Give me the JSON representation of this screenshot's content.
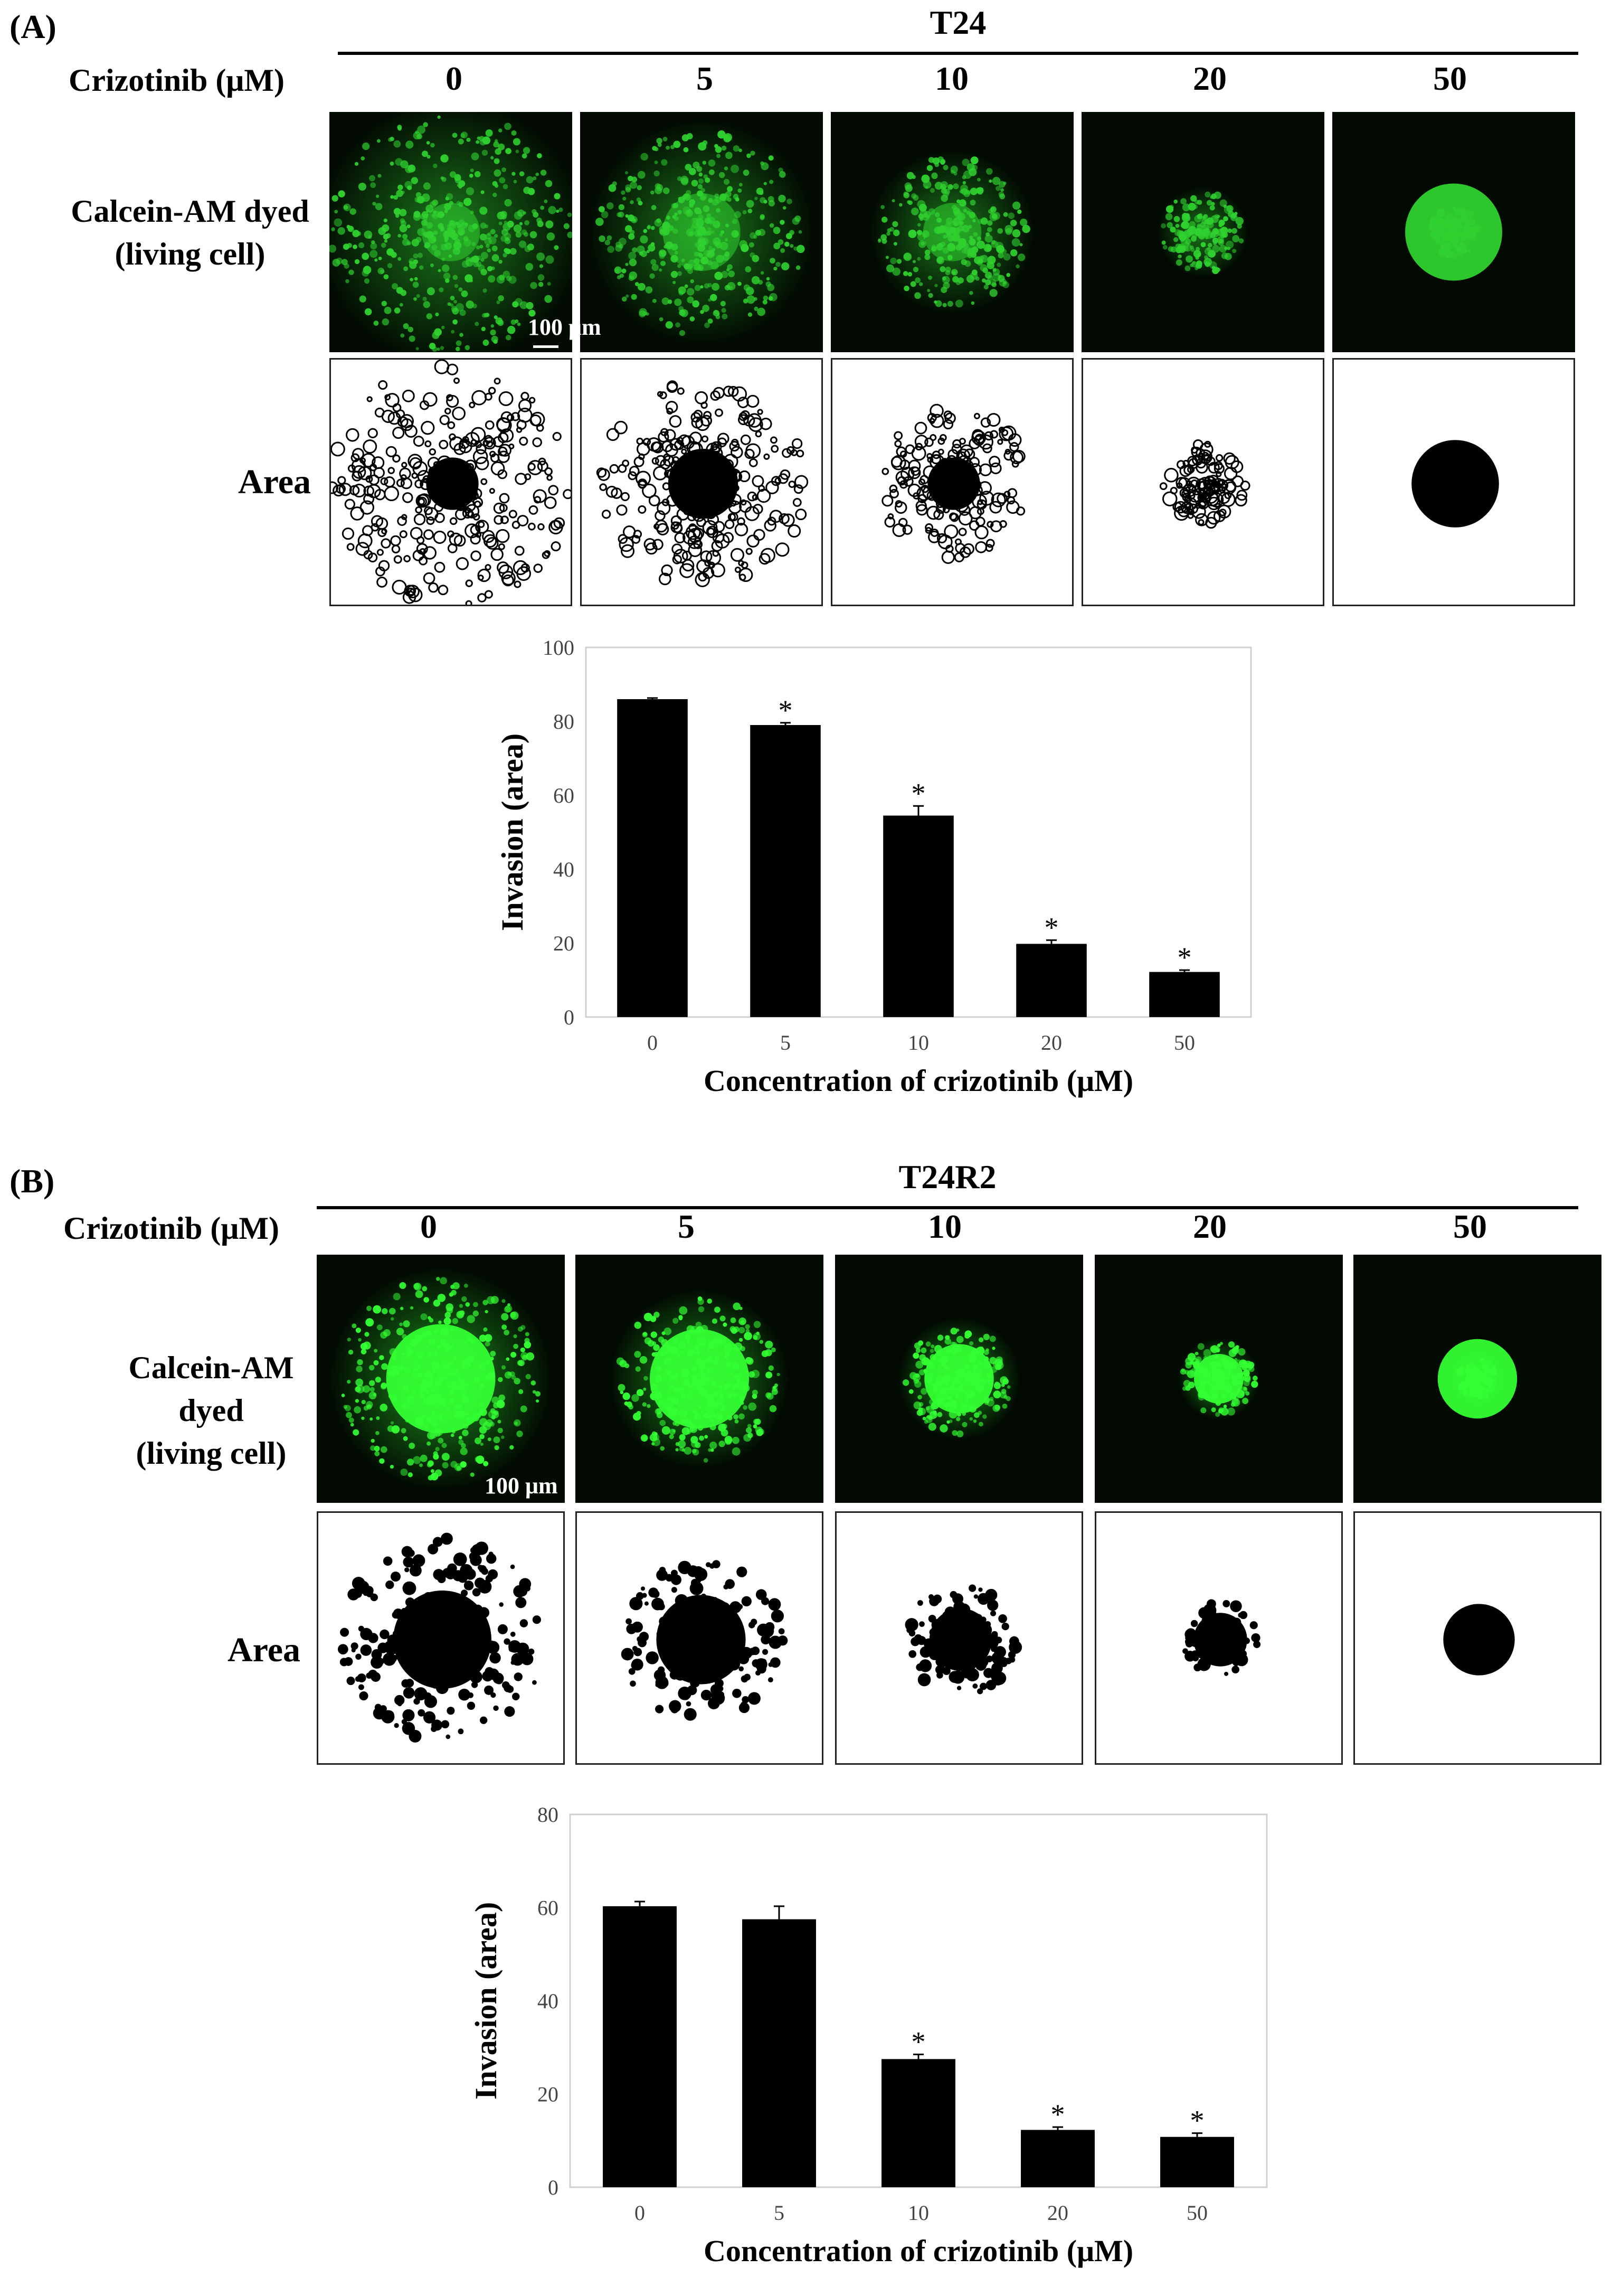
{
  "panel_a": {
    "label": "(A)",
    "cell_line": "T24",
    "treatment_label": "Crizotinib (μM)",
    "concentrations": [
      "0",
      "5",
      "10",
      "20",
      "50"
    ],
    "row1_label_lines": [
      "Calcein-AM dyed",
      "(living cell)"
    ],
    "row2_label": "Area",
    "scale_bar": "100 μm",
    "fluor_color": "#2fd12f"
  },
  "panel_b": {
    "label": "(B)",
    "cell_line": "T24R2",
    "treatment_label": "Crizotinib (μM)",
    "concentrations": [
      "0",
      "5",
      "10",
      "20",
      "50"
    ],
    "row1_label_lines": [
      "Calcein-AM",
      "dyed",
      "(living cell)"
    ],
    "row2_label": "Area",
    "scale_bar": "100 μm",
    "fluor_color": "#33ff33"
  },
  "chart_data": [
    {
      "type": "bar",
      "categories": [
        "0",
        "5",
        "10",
        "20",
        "50"
      ],
      "values": [
        86,
        79,
        54.5,
        19.8,
        12.2
      ],
      "errors": [
        0.3,
        0.6,
        2.6,
        1.0,
        0.5
      ],
      "significance": [
        "",
        "*",
        "*",
        "*",
        "*"
      ],
      "ylim": [
        0,
        100
      ],
      "yticks": [
        0,
        20,
        40,
        60,
        80,
        100
      ],
      "xlabel": "Concentration of crizotinib (μM)",
      "ylabel": "Invasion (area)",
      "bar_color": "#000000"
    },
    {
      "type": "bar",
      "categories": [
        "0",
        "5",
        "10",
        "20",
        "50"
      ],
      "values": [
        60.3,
        57.5,
        27.5,
        12.3,
        10.8
      ],
      "errors": [
        1.0,
        2.8,
        1.0,
        0.6,
        0.8
      ],
      "significance": [
        "",
        "",
        "*",
        "*",
        "*"
      ],
      "ylim": [
        0,
        80
      ],
      "yticks": [
        0,
        20,
        40,
        60,
        80
      ],
      "xlabel": "Concentration of crizotinib (μM)",
      "ylabel": "Invasion (area)",
      "bar_color": "#000000"
    }
  ]
}
